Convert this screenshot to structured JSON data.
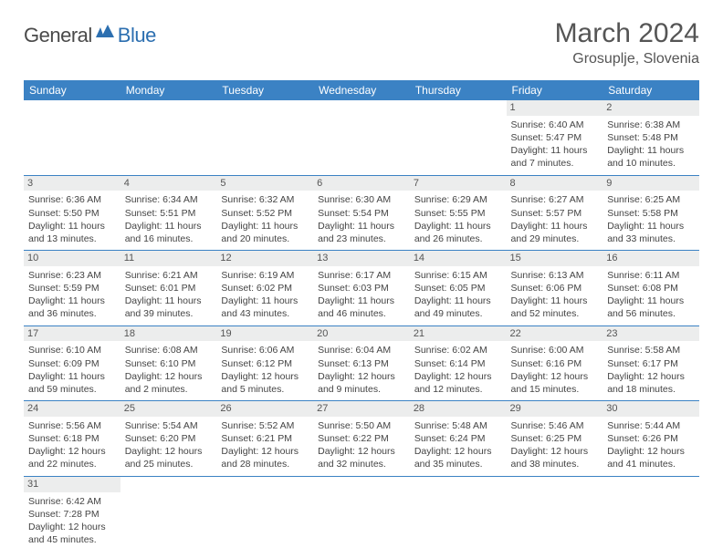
{
  "logo": {
    "text1": "General",
    "text2": "Blue"
  },
  "title": "March 2024",
  "location": "Grosuplje, Slovenia",
  "colors": {
    "header_bg": "#3b82c4",
    "header_text": "#ffffff",
    "logo_dark": "#4a4a4a",
    "logo_blue": "#2c6fb0",
    "day_bg": "#eceded",
    "border": "#3b82c4",
    "text": "#444444"
  },
  "weekdays": [
    "Sunday",
    "Monday",
    "Tuesday",
    "Wednesday",
    "Thursday",
    "Friday",
    "Saturday"
  ],
  "weeks": [
    [
      null,
      null,
      null,
      null,
      null,
      {
        "d": "1",
        "sr": "Sunrise: 6:40 AM",
        "ss": "Sunset: 5:47 PM",
        "dl1": "Daylight: 11 hours",
        "dl2": "and 7 minutes."
      },
      {
        "d": "2",
        "sr": "Sunrise: 6:38 AM",
        "ss": "Sunset: 5:48 PM",
        "dl1": "Daylight: 11 hours",
        "dl2": "and 10 minutes."
      }
    ],
    [
      {
        "d": "3",
        "sr": "Sunrise: 6:36 AM",
        "ss": "Sunset: 5:50 PM",
        "dl1": "Daylight: 11 hours",
        "dl2": "and 13 minutes."
      },
      {
        "d": "4",
        "sr": "Sunrise: 6:34 AM",
        "ss": "Sunset: 5:51 PM",
        "dl1": "Daylight: 11 hours",
        "dl2": "and 16 minutes."
      },
      {
        "d": "5",
        "sr": "Sunrise: 6:32 AM",
        "ss": "Sunset: 5:52 PM",
        "dl1": "Daylight: 11 hours",
        "dl2": "and 20 minutes."
      },
      {
        "d": "6",
        "sr": "Sunrise: 6:30 AM",
        "ss": "Sunset: 5:54 PM",
        "dl1": "Daylight: 11 hours",
        "dl2": "and 23 minutes."
      },
      {
        "d": "7",
        "sr": "Sunrise: 6:29 AM",
        "ss": "Sunset: 5:55 PM",
        "dl1": "Daylight: 11 hours",
        "dl2": "and 26 minutes."
      },
      {
        "d": "8",
        "sr": "Sunrise: 6:27 AM",
        "ss": "Sunset: 5:57 PM",
        "dl1": "Daylight: 11 hours",
        "dl2": "and 29 minutes."
      },
      {
        "d": "9",
        "sr": "Sunrise: 6:25 AM",
        "ss": "Sunset: 5:58 PM",
        "dl1": "Daylight: 11 hours",
        "dl2": "and 33 minutes."
      }
    ],
    [
      {
        "d": "10",
        "sr": "Sunrise: 6:23 AM",
        "ss": "Sunset: 5:59 PM",
        "dl1": "Daylight: 11 hours",
        "dl2": "and 36 minutes."
      },
      {
        "d": "11",
        "sr": "Sunrise: 6:21 AM",
        "ss": "Sunset: 6:01 PM",
        "dl1": "Daylight: 11 hours",
        "dl2": "and 39 minutes."
      },
      {
        "d": "12",
        "sr": "Sunrise: 6:19 AM",
        "ss": "Sunset: 6:02 PM",
        "dl1": "Daylight: 11 hours",
        "dl2": "and 43 minutes."
      },
      {
        "d": "13",
        "sr": "Sunrise: 6:17 AM",
        "ss": "Sunset: 6:03 PM",
        "dl1": "Daylight: 11 hours",
        "dl2": "and 46 minutes."
      },
      {
        "d": "14",
        "sr": "Sunrise: 6:15 AM",
        "ss": "Sunset: 6:05 PM",
        "dl1": "Daylight: 11 hours",
        "dl2": "and 49 minutes."
      },
      {
        "d": "15",
        "sr": "Sunrise: 6:13 AM",
        "ss": "Sunset: 6:06 PM",
        "dl1": "Daylight: 11 hours",
        "dl2": "and 52 minutes."
      },
      {
        "d": "16",
        "sr": "Sunrise: 6:11 AM",
        "ss": "Sunset: 6:08 PM",
        "dl1": "Daylight: 11 hours",
        "dl2": "and 56 minutes."
      }
    ],
    [
      {
        "d": "17",
        "sr": "Sunrise: 6:10 AM",
        "ss": "Sunset: 6:09 PM",
        "dl1": "Daylight: 11 hours",
        "dl2": "and 59 minutes."
      },
      {
        "d": "18",
        "sr": "Sunrise: 6:08 AM",
        "ss": "Sunset: 6:10 PM",
        "dl1": "Daylight: 12 hours",
        "dl2": "and 2 minutes."
      },
      {
        "d": "19",
        "sr": "Sunrise: 6:06 AM",
        "ss": "Sunset: 6:12 PM",
        "dl1": "Daylight: 12 hours",
        "dl2": "and 5 minutes."
      },
      {
        "d": "20",
        "sr": "Sunrise: 6:04 AM",
        "ss": "Sunset: 6:13 PM",
        "dl1": "Daylight: 12 hours",
        "dl2": "and 9 minutes."
      },
      {
        "d": "21",
        "sr": "Sunrise: 6:02 AM",
        "ss": "Sunset: 6:14 PM",
        "dl1": "Daylight: 12 hours",
        "dl2": "and 12 minutes."
      },
      {
        "d": "22",
        "sr": "Sunrise: 6:00 AM",
        "ss": "Sunset: 6:16 PM",
        "dl1": "Daylight: 12 hours",
        "dl2": "and 15 minutes."
      },
      {
        "d": "23",
        "sr": "Sunrise: 5:58 AM",
        "ss": "Sunset: 6:17 PM",
        "dl1": "Daylight: 12 hours",
        "dl2": "and 18 minutes."
      }
    ],
    [
      {
        "d": "24",
        "sr": "Sunrise: 5:56 AM",
        "ss": "Sunset: 6:18 PM",
        "dl1": "Daylight: 12 hours",
        "dl2": "and 22 minutes."
      },
      {
        "d": "25",
        "sr": "Sunrise: 5:54 AM",
        "ss": "Sunset: 6:20 PM",
        "dl1": "Daylight: 12 hours",
        "dl2": "and 25 minutes."
      },
      {
        "d": "26",
        "sr": "Sunrise: 5:52 AM",
        "ss": "Sunset: 6:21 PM",
        "dl1": "Daylight: 12 hours",
        "dl2": "and 28 minutes."
      },
      {
        "d": "27",
        "sr": "Sunrise: 5:50 AM",
        "ss": "Sunset: 6:22 PM",
        "dl1": "Daylight: 12 hours",
        "dl2": "and 32 minutes."
      },
      {
        "d": "28",
        "sr": "Sunrise: 5:48 AM",
        "ss": "Sunset: 6:24 PM",
        "dl1": "Daylight: 12 hours",
        "dl2": "and 35 minutes."
      },
      {
        "d": "29",
        "sr": "Sunrise: 5:46 AM",
        "ss": "Sunset: 6:25 PM",
        "dl1": "Daylight: 12 hours",
        "dl2": "and 38 minutes."
      },
      {
        "d": "30",
        "sr": "Sunrise: 5:44 AM",
        "ss": "Sunset: 6:26 PM",
        "dl1": "Daylight: 12 hours",
        "dl2": "and 41 minutes."
      }
    ],
    [
      {
        "d": "31",
        "sr": "Sunrise: 6:42 AM",
        "ss": "Sunset: 7:28 PM",
        "dl1": "Daylight: 12 hours",
        "dl2": "and 45 minutes."
      },
      null,
      null,
      null,
      null,
      null,
      null
    ]
  ]
}
